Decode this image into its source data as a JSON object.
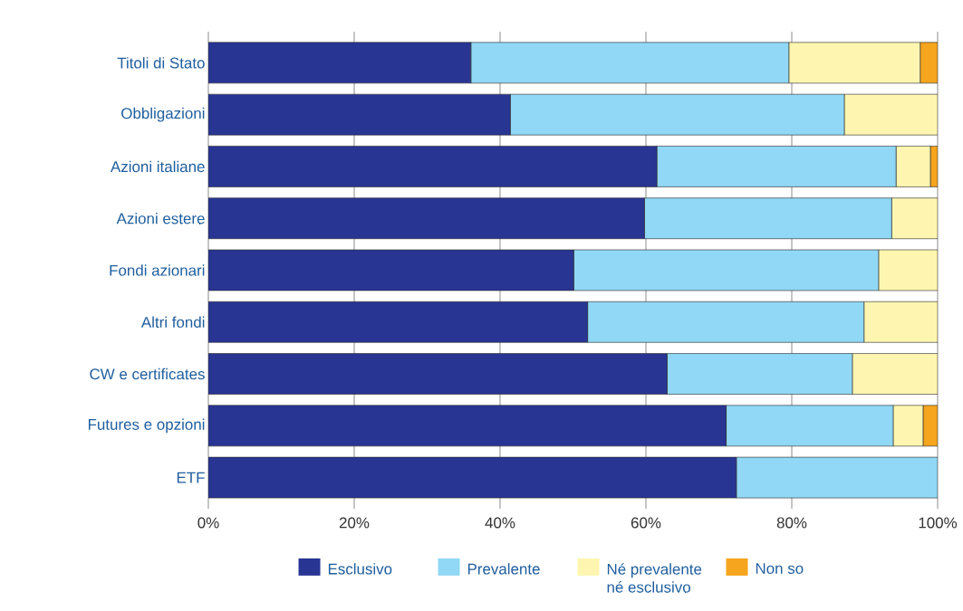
{
  "chart_data": {
    "type": "bar",
    "orientation": "horizontal",
    "stacked": true,
    "categories": [
      "Titoli di Stato",
      "Obbligazioni",
      "Azioni italiane",
      "Azioni estere",
      "Fondi azionari",
      "Altri fondi",
      "CW e certificates",
      "Futures e opzioni",
      "ETF"
    ],
    "series": [
      {
        "name": "Esclusivo",
        "color": "#283593",
        "values": [
          36.0,
          41.4,
          61.5,
          59.8,
          50.1,
          52.0,
          62.9,
          71.0,
          72.4
        ]
      },
      {
        "name": "Prevalente",
        "color": "#90d8f5",
        "values": [
          43.6,
          45.8,
          32.8,
          33.9,
          41.8,
          37.9,
          25.4,
          22.9,
          27.6
        ]
      },
      {
        "name": "Né prevalente né esclusivo",
        "color": "#fef6b0",
        "values": [
          18.0,
          12.8,
          4.7,
          6.3,
          8.1,
          10.1,
          11.7,
          4.1,
          0
        ]
      },
      {
        "name": "Non so",
        "color": "#f5a51e",
        "values": [
          2.4,
          0,
          1.0,
          0,
          0,
          0,
          0,
          2.0,
          0
        ]
      }
    ],
    "xlim": [
      0,
      100
    ],
    "xticks": [
      {
        "value": 0,
        "label": "0%"
      },
      {
        "value": 20,
        "label": "20%"
      },
      {
        "value": 40,
        "label": "40%"
      },
      {
        "value": 60,
        "label": "60%"
      },
      {
        "value": 80,
        "label": "80%"
      },
      {
        "value": 100,
        "label": "100%"
      }
    ],
    "grid": "x",
    "legend": "bottom"
  }
}
